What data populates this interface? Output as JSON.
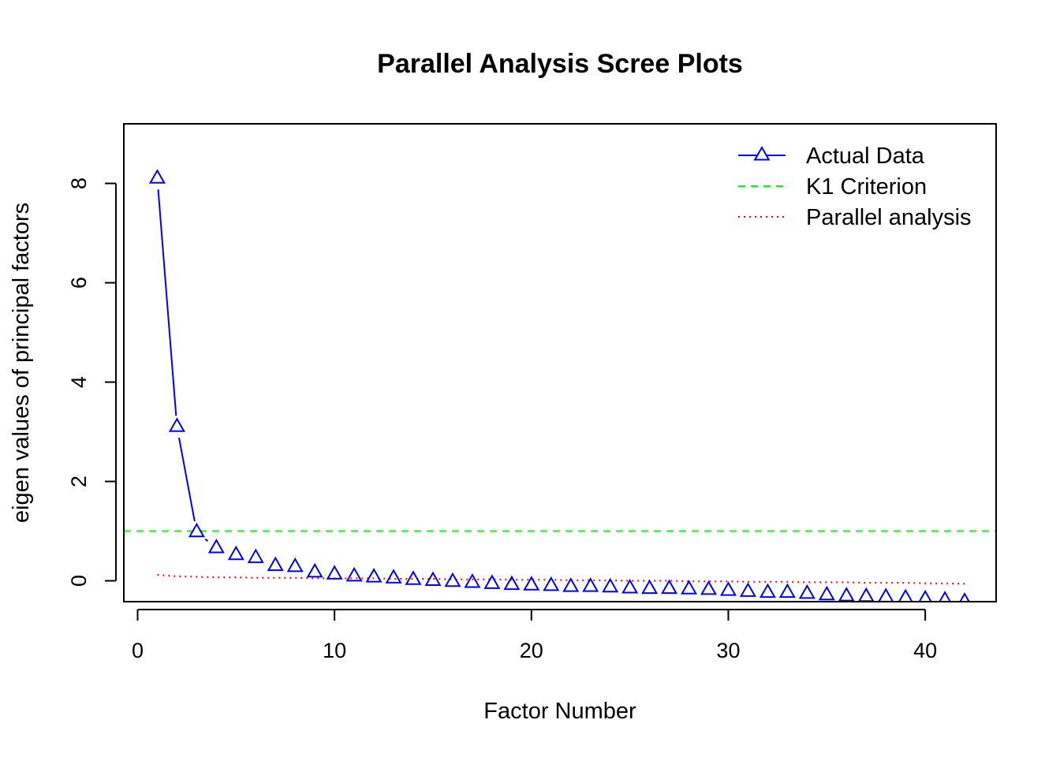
{
  "chart_data": {
    "type": "line",
    "title": "Parallel Analysis Scree Plots",
    "xlabel": "Factor Number",
    "ylabel": "eigen values of principal factors",
    "xlim": [
      -0.7,
      43.6
    ],
    "ylim": [
      -0.42,
      9.2
    ],
    "x_ticks": [
      0,
      10,
      20,
      30,
      40
    ],
    "y_ticks": [
      0,
      2,
      4,
      6,
      8
    ],
    "legend_position": "top-right",
    "series": [
      {
        "name": "Actual Data",
        "style": "line-triangles",
        "color": "#0000ff",
        "x": [
          1,
          2,
          3,
          4,
          5,
          6,
          7,
          8,
          9,
          10,
          11,
          12,
          13,
          14,
          15,
          16,
          17,
          18,
          19,
          20,
          21,
          22,
          23,
          24,
          25,
          26,
          27,
          28,
          29,
          30,
          31,
          32,
          33,
          34,
          35,
          36,
          37,
          38,
          39,
          40,
          41,
          42
        ],
        "values": [
          8.1,
          3.1,
          0.98,
          0.66,
          0.52,
          0.46,
          0.3,
          0.28,
          0.17,
          0.13,
          0.09,
          0.07,
          0.05,
          0.02,
          0.0,
          -0.02,
          -0.04,
          -0.06,
          -0.08,
          -0.09,
          -0.1,
          -0.12,
          -0.12,
          -0.13,
          -0.15,
          -0.16,
          -0.16,
          -0.17,
          -0.18,
          -0.2,
          -0.22,
          -0.24,
          -0.24,
          -0.26,
          -0.29,
          -0.31,
          -0.32,
          -0.33,
          -0.35,
          -0.37,
          -0.39,
          -0.42
        ]
      },
      {
        "name": "K1 Criterion",
        "style": "dashed",
        "color": "#00ff00",
        "y": 1
      },
      {
        "name": "Parallel analysis",
        "style": "dotted",
        "color": "#ff0000",
        "x": [
          1,
          2,
          3,
          4,
          5,
          6,
          7,
          8,
          9,
          10,
          11,
          12,
          13,
          14,
          15,
          16,
          17,
          18,
          19,
          20,
          21,
          22,
          23,
          24,
          25,
          26,
          27,
          28,
          29,
          30,
          31,
          32,
          33,
          34,
          35,
          36,
          37,
          38,
          39,
          40,
          41,
          42
        ],
        "values": [
          0.12,
          0.09,
          0.08,
          0.07,
          0.07,
          0.06,
          0.06,
          0.06,
          0.05,
          0.05,
          0.05,
          0.05,
          0.04,
          0.04,
          0.04,
          0.03,
          0.03,
          0.03,
          0.02,
          0.02,
          0.02,
          0.01,
          0.01,
          0.01,
          0.0,
          0.0,
          0.0,
          -0.01,
          -0.01,
          -0.01,
          -0.02,
          -0.02,
          -0.02,
          -0.03,
          -0.03,
          -0.03,
          -0.04,
          -0.04,
          -0.04,
          -0.05,
          -0.05,
          -0.06
        ]
      }
    ]
  }
}
